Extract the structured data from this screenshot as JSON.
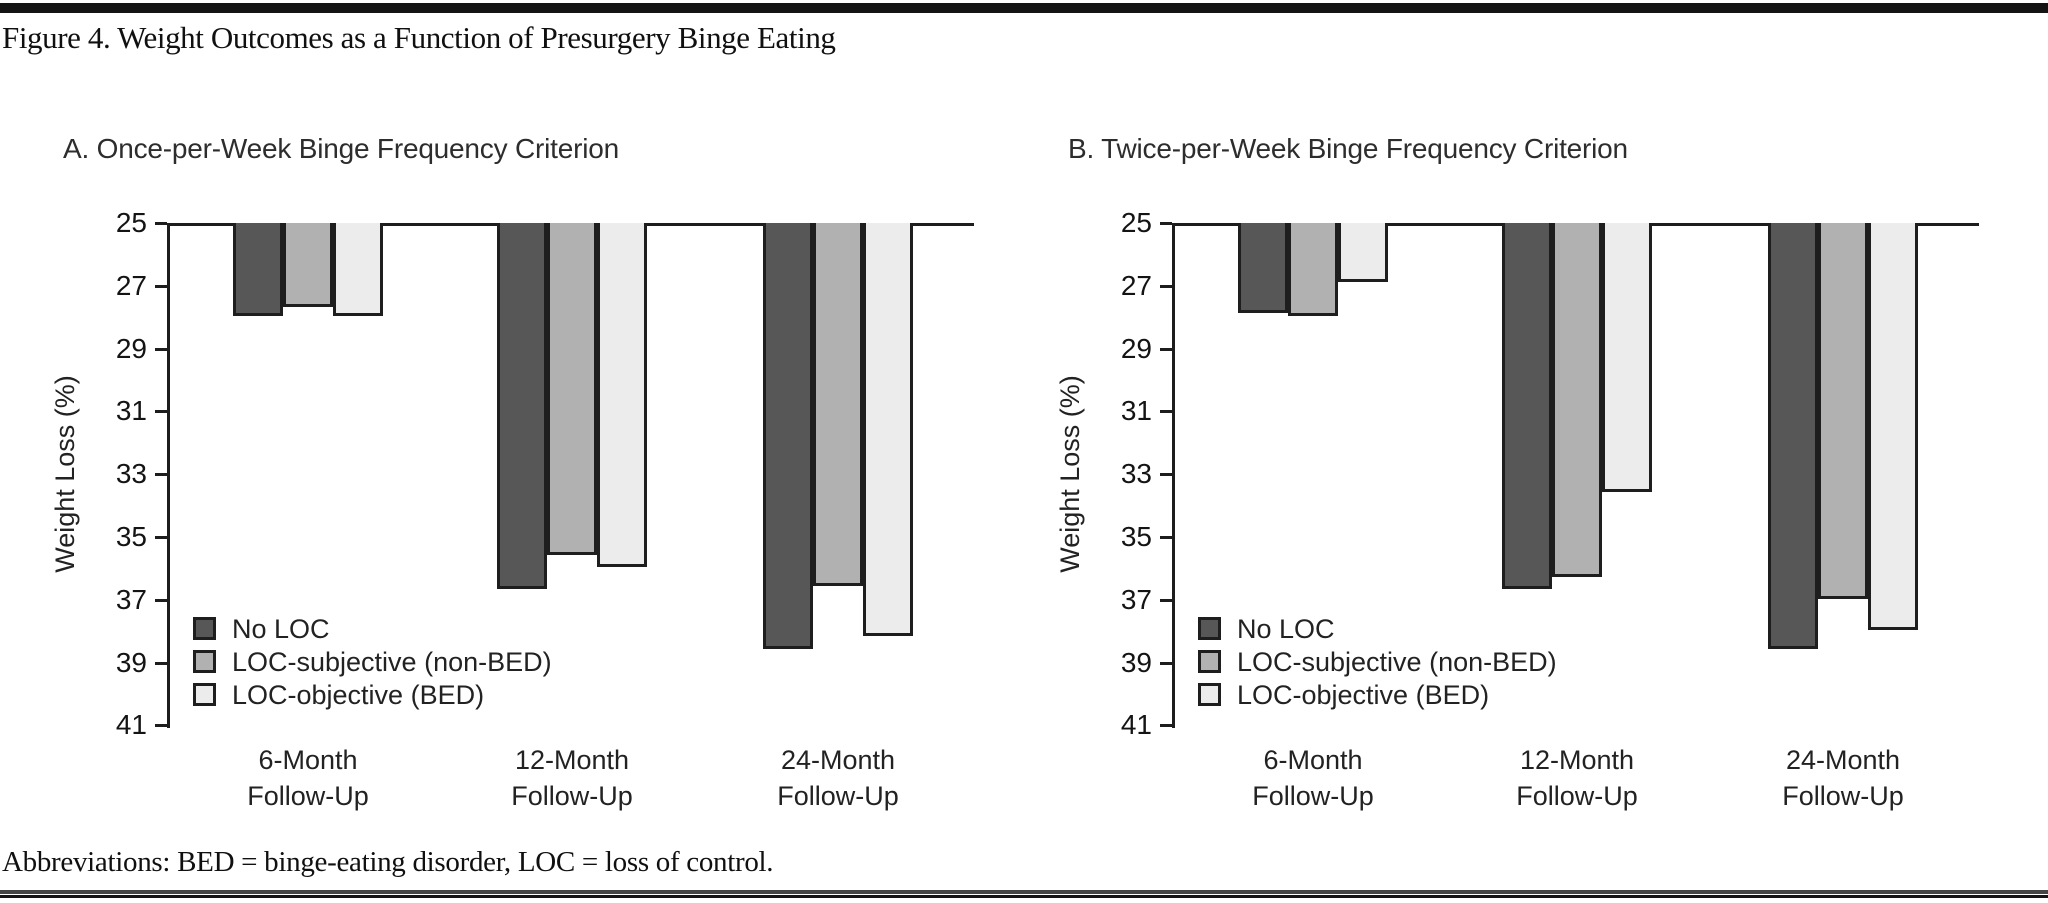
{
  "page": {
    "title": "Figure 4. Weight Outcomes as a Function of Presurgery Binge Eating",
    "footnote": "Abbreviations: BED = binge-eating disorder, LOC = loss of control."
  },
  "chart_data": [
    {
      "type": "bar",
      "panel_label": "A. Once-per-Week Binge Frequency Criterion",
      "categories": [
        "6-Month",
        "12-Month",
        "24-Month"
      ],
      "category_suffix": "Follow-Up",
      "ylabel": "Weight Loss (%)",
      "yticks": [
        25,
        27,
        29,
        31,
        33,
        35,
        37,
        39,
        41
      ],
      "ylim": [
        25,
        41
      ],
      "y_axis_inverted": true,
      "grid": false,
      "legend_position": "lower-left-inside",
      "series": [
        {
          "name": "No LOC",
          "color": "#575757",
          "values": [
            27.9,
            36.6,
            38.5
          ]
        },
        {
          "name": "LOC-subjective (non-BED)",
          "color": "#b1b1b1",
          "values": [
            27.6,
            35.5,
            36.5
          ]
        },
        {
          "name": "LOC-objective (BED)",
          "color": "#ececec",
          "values": [
            27.9,
            35.9,
            38.1
          ]
        }
      ]
    },
    {
      "type": "bar",
      "panel_label": "B. Twice-per-Week Binge Frequency Criterion",
      "categories": [
        "6-Month",
        "12-Month",
        "24-Month"
      ],
      "category_suffix": "Follow-Up",
      "ylabel": "Weight Loss (%)",
      "yticks": [
        25,
        27,
        29,
        31,
        33,
        35,
        37,
        39,
        41
      ],
      "ylim": [
        25,
        41
      ],
      "y_axis_inverted": true,
      "grid": false,
      "legend_position": "lower-left-inside",
      "series": [
        {
          "name": "No LOC",
          "color": "#575757",
          "values": [
            27.8,
            36.6,
            38.5
          ]
        },
        {
          "name": "LOC-subjective (non-BED)",
          "color": "#b1b1b1",
          "values": [
            27.9,
            36.2,
            36.9
          ]
        },
        {
          "name": "LOC-objective (BED)",
          "color": "#ececec",
          "values": [
            26.8,
            33.5,
            37.9
          ]
        }
      ]
    }
  ]
}
